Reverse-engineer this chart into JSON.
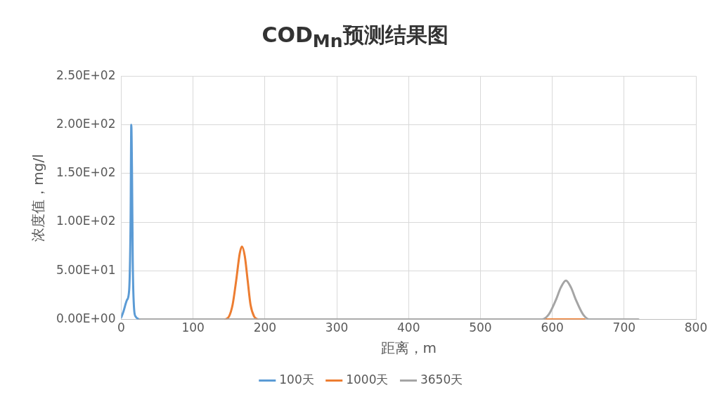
{
  "chart_data": {
    "type": "line",
    "title": "COD$_{Mn}$预测结果图",
    "xlabel": "距离，m",
    "ylabel": "浓度值，mg/l",
    "xlim": [
      0,
      800
    ],
    "xticks": [
      0,
      100,
      200,
      300,
      400,
      500,
      600,
      700,
      800
    ],
    "ylim": [
      0,
      250
    ],
    "yticks": [
      {
        "value": 0,
        "label": "0.00E+00"
      },
      {
        "value": 50,
        "label": "5.00E+01"
      },
      {
        "value": 100,
        "label": "1.00E+02"
      },
      {
        "value": 150,
        "label": "1.50E+02"
      },
      {
        "value": 200,
        "label": "2.00E+02"
      },
      {
        "value": 250,
        "label": "2.50E+02"
      }
    ],
    "grid": true,
    "legend": "bottom",
    "marker": "none",
    "line_style": "solid",
    "series": [
      {
        "name": "100天",
        "color": "#5b9bd5",
        "x": [
          0,
          3,
          8,
          11,
          13,
          14,
          15,
          16,
          18,
          20,
          25
        ],
        "values": [
          2,
          8,
          20,
          30,
          100,
          200,
          150,
          60,
          10,
          3,
          0
        ]
      },
      {
        "name": "1000天",
        "color": "#ed7d31",
        "x": [
          145,
          150,
          155,
          160,
          165,
          168,
          172,
          176,
          180,
          185,
          190,
          400,
          590,
          645
        ],
        "values": [
          0,
          3,
          15,
          40,
          68,
          75,
          65,
          40,
          15,
          3,
          0,
          null,
          0,
          0
        ]
      },
      {
        "name": "3650天",
        "color": "#a5a5a5",
        "x": [
          25,
          200,
          400,
          585,
          595,
          605,
          612,
          619,
          626,
          633,
          643,
          652,
          720
        ],
        "values": [
          0,
          0,
          0,
          0,
          5,
          20,
          33,
          40,
          33,
          20,
          5,
          0,
          0
        ]
      }
    ]
  }
}
